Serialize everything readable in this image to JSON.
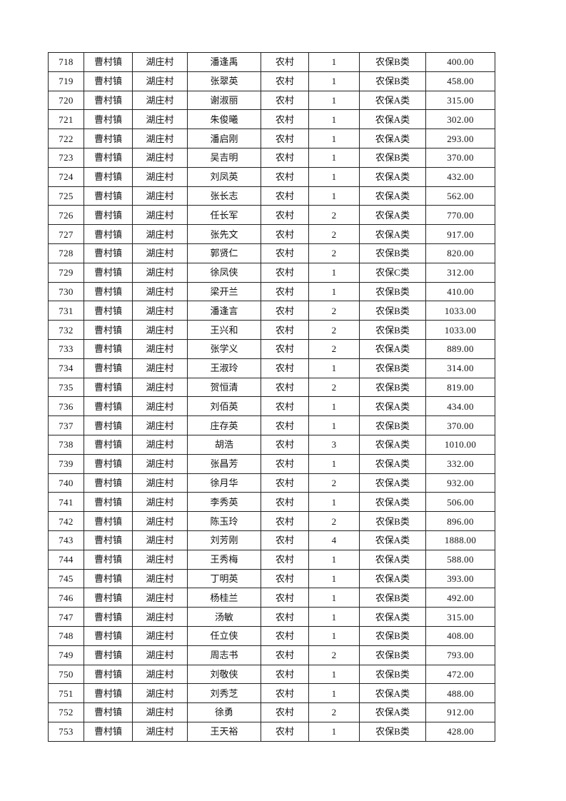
{
  "table": {
    "rows": [
      [
        "718",
        "曹村镇",
        "湖庄村",
        "潘逢禹",
        "农村",
        "1",
        "农保B类",
        "400.00"
      ],
      [
        "719",
        "曹村镇",
        "湖庄村",
        "张翠英",
        "农村",
        "1",
        "农保B类",
        "458.00"
      ],
      [
        "720",
        "曹村镇",
        "湖庄村",
        "谢淑丽",
        "农村",
        "1",
        "农保A类",
        "315.00"
      ],
      [
        "721",
        "曹村镇",
        "湖庄村",
        "朱俊曦",
        "农村",
        "1",
        "农保A类",
        "302.00"
      ],
      [
        "722",
        "曹村镇",
        "湖庄村",
        "潘启刚",
        "农村",
        "1",
        "农保A类",
        "293.00"
      ],
      [
        "723",
        "曹村镇",
        "湖庄村",
        "吴吉明",
        "农村",
        "1",
        "农保B类",
        "370.00"
      ],
      [
        "724",
        "曹村镇",
        "湖庄村",
        "刘凤英",
        "农村",
        "1",
        "农保A类",
        "432.00"
      ],
      [
        "725",
        "曹村镇",
        "湖庄村",
        "张长志",
        "农村",
        "1",
        "农保A类",
        "562.00"
      ],
      [
        "726",
        "曹村镇",
        "湖庄村",
        "任长军",
        "农村",
        "2",
        "农保A类",
        "770.00"
      ],
      [
        "727",
        "曹村镇",
        "湖庄村",
        "张先文",
        "农村",
        "2",
        "农保A类",
        "917.00"
      ],
      [
        "728",
        "曹村镇",
        "湖庄村",
        "郭贤仁",
        "农村",
        "2",
        "农保B类",
        "820.00"
      ],
      [
        "729",
        "曹村镇",
        "湖庄村",
        "徐凤侠",
        "农村",
        "1",
        "农保C类",
        "312.00"
      ],
      [
        "730",
        "曹村镇",
        "湖庄村",
        "梁开兰",
        "农村",
        "1",
        "农保B类",
        "410.00"
      ],
      [
        "731",
        "曹村镇",
        "湖庄村",
        "潘逢言",
        "农村",
        "2",
        "农保B类",
        "1033.00"
      ],
      [
        "732",
        "曹村镇",
        "湖庄村",
        "王兴和",
        "农村",
        "2",
        "农保B类",
        "1033.00"
      ],
      [
        "733",
        "曹村镇",
        "湖庄村",
        "张学义",
        "农村",
        "2",
        "农保A类",
        "889.00"
      ],
      [
        "734",
        "曹村镇",
        "湖庄村",
        "王淑玲",
        "农村",
        "1",
        "农保B类",
        "314.00"
      ],
      [
        "735",
        "曹村镇",
        "湖庄村",
        "贺恒清",
        "农村",
        "2",
        "农保B类",
        "819.00"
      ],
      [
        "736",
        "曹村镇",
        "湖庄村",
        "刘佰英",
        "农村",
        "1",
        "农保A类",
        "434.00"
      ],
      [
        "737",
        "曹村镇",
        "湖庄村",
        "庄存英",
        "农村",
        "1",
        "农保B类",
        "370.00"
      ],
      [
        "738",
        "曹村镇",
        "湖庄村",
        "胡浩",
        "农村",
        "3",
        "农保A类",
        "1010.00"
      ],
      [
        "739",
        "曹村镇",
        "湖庄村",
        "张昌芳",
        "农村",
        "1",
        "农保A类",
        "332.00"
      ],
      [
        "740",
        "曹村镇",
        "湖庄村",
        "徐月华",
        "农村",
        "2",
        "农保A类",
        "932.00"
      ],
      [
        "741",
        "曹村镇",
        "湖庄村",
        "李秀英",
        "农村",
        "1",
        "农保A类",
        "506.00"
      ],
      [
        "742",
        "曹村镇",
        "湖庄村",
        "陈玉玲",
        "农村",
        "2",
        "农保B类",
        "896.00"
      ],
      [
        "743",
        "曹村镇",
        "湖庄村",
        "刘芳刚",
        "农村",
        "4",
        "农保A类",
        "1888.00"
      ],
      [
        "744",
        "曹村镇",
        "湖庄村",
        "王秀梅",
        "农村",
        "1",
        "农保A类",
        "588.00"
      ],
      [
        "745",
        "曹村镇",
        "湖庄村",
        "丁明英",
        "农村",
        "1",
        "农保A类",
        "393.00"
      ],
      [
        "746",
        "曹村镇",
        "湖庄村",
        "杨桂兰",
        "农村",
        "1",
        "农保B类",
        "492.00"
      ],
      [
        "747",
        "曹村镇",
        "湖庄村",
        "汤敏",
        "农村",
        "1",
        "农保A类",
        "315.00"
      ],
      [
        "748",
        "曹村镇",
        "湖庄村",
        "任立侠",
        "农村",
        "1",
        "农保B类",
        "408.00"
      ],
      [
        "749",
        "曹村镇",
        "湖庄村",
        "周志书",
        "农村",
        "2",
        "农保B类",
        "793.00"
      ],
      [
        "750",
        "曹村镇",
        "湖庄村",
        "刘敬侠",
        "农村",
        "1",
        "农保B类",
        "472.00"
      ],
      [
        "751",
        "曹村镇",
        "湖庄村",
        "刘秀芝",
        "农村",
        "1",
        "农保A类",
        "488.00"
      ],
      [
        "752",
        "曹村镇",
        "湖庄村",
        "徐勇",
        "农村",
        "2",
        "农保A类",
        "912.00"
      ],
      [
        "753",
        "曹村镇",
        "湖庄村",
        "王天裕",
        "农村",
        "1",
        "农保B类",
        "428.00"
      ]
    ]
  }
}
